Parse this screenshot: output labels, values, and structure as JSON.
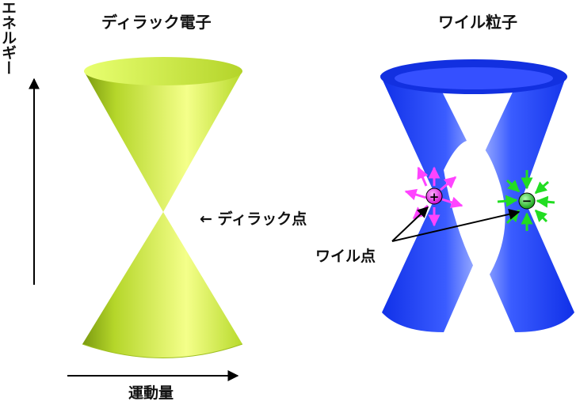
{
  "titles": {
    "dirac": "ディラック電子",
    "weyl": "ワイル粒子"
  },
  "axes": {
    "energy": "エネルギー",
    "momentum": "運動量"
  },
  "labels": {
    "dirac_point": "← ディラック点",
    "weyl_point": "ワイル点"
  },
  "charges": {
    "positive": "+",
    "negative": "−"
  },
  "colors": {
    "dirac_cone": "#c6ea3c",
    "weyl_cone": "#1a3cff",
    "source_arrows": "#ff44ff",
    "sink_arrows": "#22dd22"
  }
}
